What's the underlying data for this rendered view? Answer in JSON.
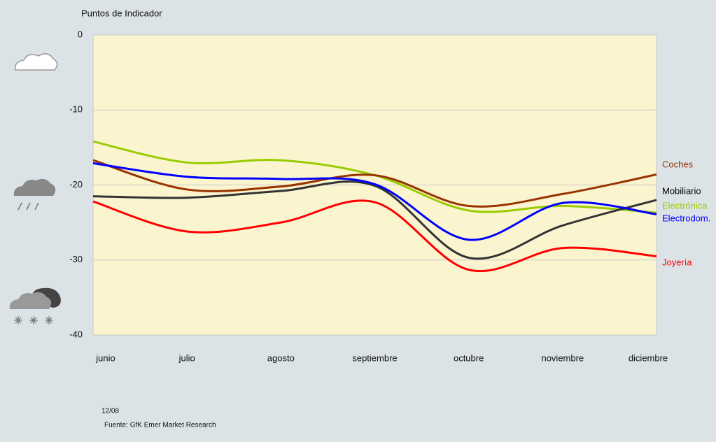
{
  "chart_data": {
    "type": "line",
    "y_label": "Puntos de Indicador",
    "categories": [
      "junio",
      "julio",
      "agosto",
      "septiembre",
      "octubre",
      "noviembre",
      "diciembre"
    ],
    "series": [
      {
        "name": "Electrónica",
        "color": "#99cc00",
        "values": [
          -14.2,
          -17.0,
          -16.7,
          -18.7,
          -23.4,
          -22.8,
          -23.7
        ]
      },
      {
        "name": "Coches",
        "color": "#993300",
        "values": [
          -16.7,
          -20.6,
          -20.2,
          -18.7,
          -22.8,
          -21.2,
          -18.6
        ]
      },
      {
        "name": "Mobiliario",
        "color": "#333333",
        "values": [
          -21.5,
          -21.7,
          -20.8,
          -20.1,
          -29.7,
          -25.4,
          -22.0
        ]
      },
      {
        "name": "Electrodom.",
        "color": "#0000ff",
        "values": [
          -17.1,
          -18.9,
          -19.2,
          -19.9,
          -27.3,
          -22.4,
          -23.9
        ]
      },
      {
        "name": "Joyería",
        "color": "#ff0000",
        "values": [
          -22.2,
          -26.2,
          -25.0,
          -22.3,
          -31.3,
          -28.4,
          -29.5
        ]
      }
    ],
    "ylim": [
      -40,
      0
    ],
    "yticks": [
      0,
      -10,
      -20,
      -30,
      -40
    ],
    "grid": true,
    "date": "12/08",
    "source": "Fuente: GfK Emer Market Research"
  }
}
